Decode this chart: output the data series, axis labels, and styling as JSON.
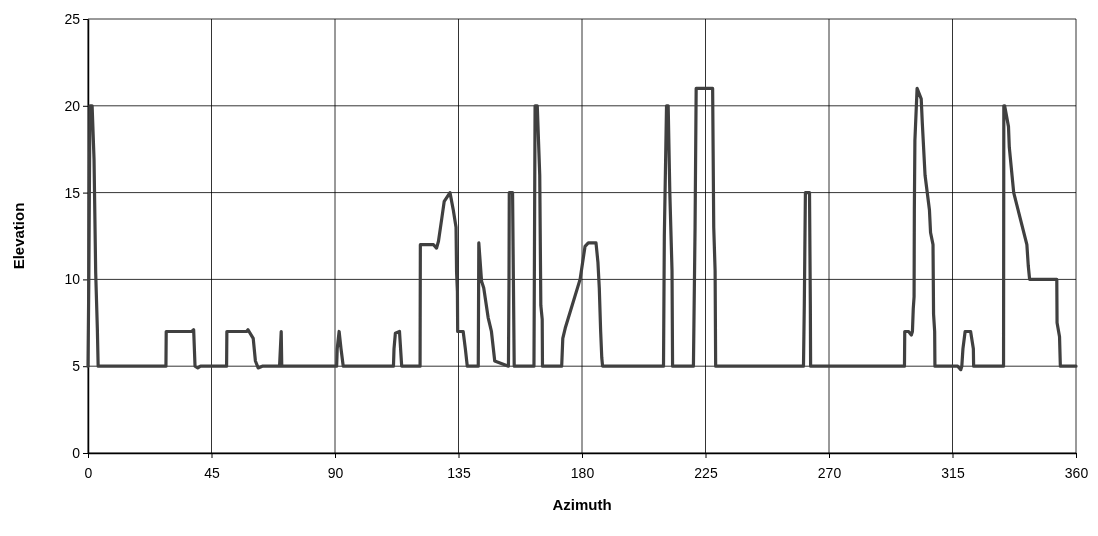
{
  "chart_data": {
    "type": "line",
    "xlabel": "Azimuth",
    "ylabel": "Elevation",
    "xlim": [
      0,
      360
    ],
    "ylim": [
      0,
      25
    ],
    "xticks": [
      0,
      45,
      90,
      135,
      180,
      225,
      270,
      315,
      360
    ],
    "yticks": [
      0,
      5,
      10,
      15,
      20,
      25
    ],
    "grid": true,
    "marker": "none",
    "line_style": "solid",
    "series": [
      {
        "color": "#404040",
        "x": [
          0,
          0.3,
          0.7,
          1.5,
          2.2,
          2.8,
          3.4,
          3.7,
          28.4,
          28.5,
          37.8,
          38.5,
          39,
          40,
          41,
          50.5,
          50.6,
          57.8,
          58.3,
          60.2,
          61,
          62,
          63.5,
          69.8,
          70.4,
          70.6,
          90.6,
          90.8,
          91.5,
          92.2,
          93,
          111.3,
          111.5,
          112,
          113.5,
          114.3,
          121,
          121.1,
          125.9,
          127,
          127.7,
          128.9,
          129.8,
          131.9,
          133.1,
          134.1,
          134.3,
          134.6,
          134.7,
          136.7,
          137.5,
          138.2,
          142.2,
          142.4,
          143.4,
          144.2,
          145.8,
          147,
          148.2,
          153.2,
          153.4,
          153.5,
          154.7,
          155,
          155.3,
          162.5,
          162.9,
          163.7,
          164.6,
          165,
          165.5,
          165.6,
          172.6,
          173,
          173.9,
          179.3,
          181.1,
          182.3,
          185.1,
          185.8,
          186.3,
          186.8,
          187.2,
          187.5,
          209.7,
          210,
          210.8,
          211.4,
          212,
          212.8,
          213,
          220.6,
          221.2,
          221.6,
          227.6,
          228,
          228.5,
          228.7,
          260.7,
          261,
          261.4,
          262.9,
          263.2,
          263.3,
          297.5,
          297.6,
          299,
          300,
          300.4,
          300.7,
          301,
          301.1,
          301.3,
          302.1,
          303.6,
          304,
          305,
          306.6,
          307,
          307.9,
          308.1,
          308.5,
          308.6,
          316.9,
          318,
          318.4,
          318.8,
          319.6,
          321.6,
          322.6,
          322.7,
          333.6,
          333.7,
          334,
          335.4,
          335.7,
          337.3,
          342.1,
          342.6,
          343.1,
          353,
          353.1,
          354,
          354.3,
          360
        ],
        "values": [
          5,
          10,
          20,
          20,
          16.9,
          10.4,
          7.2,
          5,
          5,
          7,
          7,
          7.1,
          5,
          4.9,
          5,
          5,
          7,
          7,
          7.1,
          6.6,
          5.3,
          4.9,
          5,
          5,
          7,
          5,
          5,
          6,
          7,
          6,
          5,
          5,
          6,
          6.9,
          7,
          5,
          5,
          12,
          12,
          11.8,
          12.2,
          13.5,
          14.5,
          15,
          14,
          13,
          10.4,
          9.3,
          7,
          7,
          6,
          5,
          5,
          12.1,
          9.9,
          9.5,
          7.8,
          7,
          5.3,
          5,
          10,
          15,
          15,
          10,
          5,
          5,
          20,
          20,
          16,
          8.5,
          7.7,
          5,
          5,
          6.6,
          7.2,
          10,
          11.9,
          12.1,
          12.1,
          11,
          9.5,
          7,
          5.5,
          5,
          5,
          12.5,
          20,
          20,
          15,
          10.5,
          5,
          5,
          13,
          21,
          21,
          13,
          10.5,
          5,
          5,
          8.5,
          15,
          15,
          8.5,
          5,
          5,
          7,
          7,
          6.8,
          7,
          8.3,
          9,
          14,
          18,
          21,
          20.4,
          19,
          16,
          14,
          12.7,
          12,
          8,
          7,
          5,
          5,
          4.8,
          5,
          6,
          7,
          7,
          6,
          5,
          5,
          20,
          20,
          18.8,
          17.6,
          15,
          12,
          10.8,
          10,
          10,
          7.5,
          6.7,
          5,
          5
        ]
      }
    ]
  }
}
